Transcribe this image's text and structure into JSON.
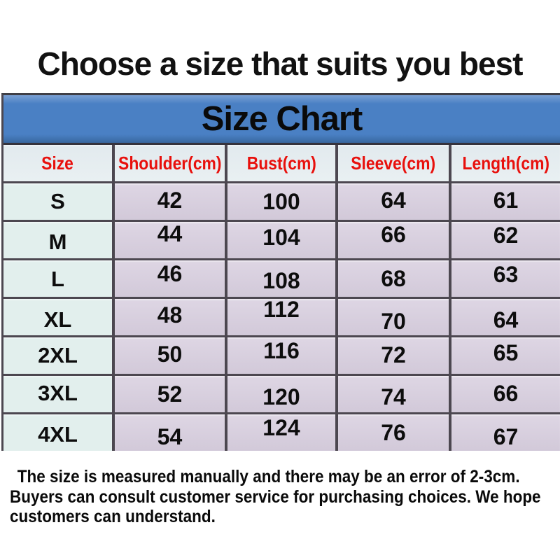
{
  "page": {
    "title": "Choose a size that suits you best"
  },
  "chart_data": {
    "type": "table",
    "title": "Size Chart",
    "columns": [
      "Size",
      "Shoulder(cm)",
      "Bust(cm)",
      "Sleeve(cm)",
      "Length(cm)"
    ],
    "rows": [
      [
        "S",
        42,
        100,
        64,
        61
      ],
      [
        "M",
        44,
        104,
        66,
        62
      ],
      [
        "L",
        46,
        108,
        68,
        63
      ],
      [
        "XL",
        48,
        112,
        70,
        64
      ],
      [
        "2XL",
        50,
        116,
        72,
        65
      ],
      [
        "3XL",
        52,
        120,
        74,
        66
      ],
      [
        "4XL",
        54,
        124,
        76,
        67
      ]
    ]
  },
  "note": {
    "lines": [
      "The size is measured manually and there may be an error of 2-3cm.",
      "Buyers can consult customer service for purchasing choices. We hope",
      "customers can understand."
    ]
  },
  "colors": {
    "banner_blue": "#4a80c4",
    "header_text_red": "#e8100c",
    "header_cell_bg": "#e9f0f2",
    "size_column_bg": "#e2efed",
    "data_cell_bg": "#d2c9d9",
    "grid_border": "#4c4750"
  }
}
